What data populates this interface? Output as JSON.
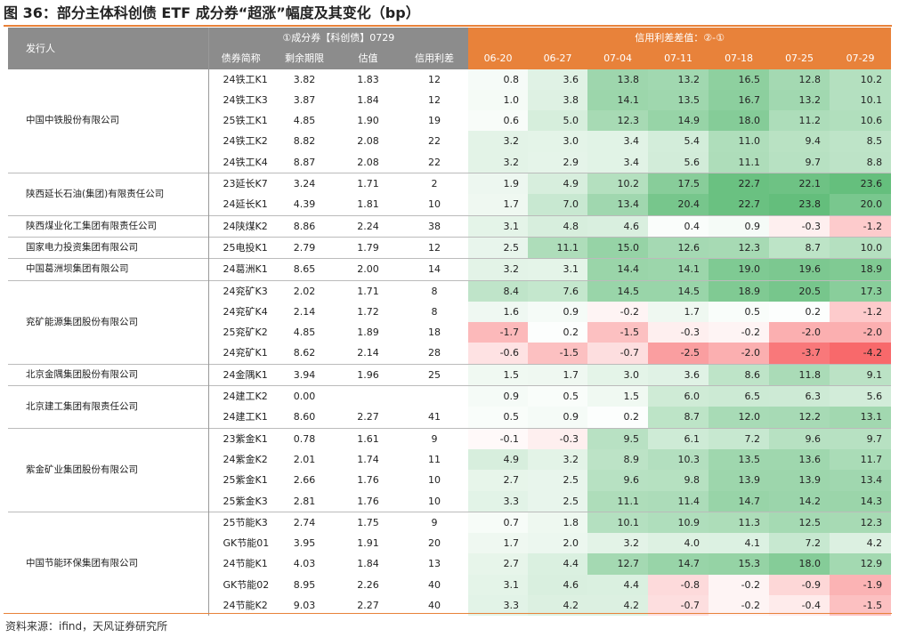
{
  "title": "图 36：部分主体科创债 ETF 成分券“超涨”幅度及其变化（bp）",
  "source": "资料来源：ifind，天风证券研究所",
  "header": {
    "issuer": "发行人",
    "group1": "①成分券【科创债】0729",
    "group2": "信用利差差值：②-①",
    "cols": [
      "债券简称",
      "剩余期限",
      "估值",
      "信用利差"
    ],
    "dates": [
      "06-20",
      "06-27",
      "07-04",
      "07-11",
      "07-18",
      "07-25",
      "07-29"
    ]
  },
  "groups": [
    {
      "issuer": "中国中铁股份有限公司",
      "rows": [
        {
          "bond": "24铁工K1",
          "term": "3.82",
          "val": "1.83",
          "spread": "12",
          "d": [
            "0.8",
            "3.6",
            "13.8",
            "13.2",
            "16.5",
            "12.8",
            "10.2"
          ]
        },
        {
          "bond": "24铁工K3",
          "term": "3.87",
          "val": "1.84",
          "spread": "12",
          "d": [
            "1.0",
            "3.8",
            "14.1",
            "13.5",
            "16.7",
            "13.2",
            "10.1"
          ]
        },
        {
          "bond": "25铁工K1",
          "term": "4.85",
          "val": "1.90",
          "spread": "19",
          "d": [
            "0.6",
            "5.0",
            "12.3",
            "14.9",
            "18.0",
            "11.2",
            "10.6"
          ]
        },
        {
          "bond": "24铁工K2",
          "term": "8.82",
          "val": "2.08",
          "spread": "22",
          "d": [
            "3.2",
            "3.0",
            "3.4",
            "5.4",
            "11.0",
            "9.4",
            "8.5"
          ]
        },
        {
          "bond": "24铁工K4",
          "term": "8.87",
          "val": "2.08",
          "spread": "22",
          "d": [
            "3.2",
            "2.9",
            "3.4",
            "5.6",
            "11.1",
            "9.7",
            "8.8"
          ]
        }
      ]
    },
    {
      "issuer": "陕西延长石油(集团)有限责任公司",
      "rows": [
        {
          "bond": "23延长K7",
          "term": "3.24",
          "val": "1.71",
          "spread": "2",
          "d": [
            "1.9",
            "4.9",
            "10.2",
            "17.5",
            "22.7",
            "22.1",
            "23.6"
          ]
        },
        {
          "bond": "24延长K1",
          "term": "4.39",
          "val": "1.81",
          "spread": "10",
          "d": [
            "1.7",
            "7.0",
            "13.4",
            "20.4",
            "22.7",
            "23.8",
            "20.0"
          ]
        }
      ]
    },
    {
      "issuer": "陕西煤业化工集团有限责任公司",
      "rows": [
        {
          "bond": "24陕煤K2",
          "term": "8.86",
          "val": "2.24",
          "spread": "38",
          "d": [
            "3.1",
            "4.8",
            "4.6",
            "0.4",
            "0.9",
            "-0.3",
            "-1.2"
          ]
        }
      ]
    },
    {
      "issuer": "国家电力投资集团有限公司",
      "rows": [
        {
          "bond": "25电投K1",
          "term": "2.79",
          "val": "1.79",
          "spread": "12",
          "d": [
            "2.5",
            "11.1",
            "15.0",
            "12.6",
            "12.3",
            "8.7",
            "10.0"
          ]
        }
      ]
    },
    {
      "issuer": "中国葛洲坝集团有限公司",
      "rows": [
        {
          "bond": "24葛洲K1",
          "term": "8.65",
          "val": "2.00",
          "spread": "14",
          "d": [
            "3.2",
            "3.1",
            "14.4",
            "14.1",
            "19.0",
            "19.6",
            "18.9"
          ]
        }
      ]
    },
    {
      "issuer": "兖矿能源集团股份有限公司",
      "rows": [
        {
          "bond": "24兖矿K3",
          "term": "2.02",
          "val": "1.71",
          "spread": "8",
          "d": [
            "8.4",
            "7.6",
            "14.5",
            "14.5",
            "18.9",
            "20.5",
            "17.3"
          ]
        },
        {
          "bond": "24兖矿K4",
          "term": "2.14",
          "val": "1.72",
          "spread": "8",
          "d": [
            "1.6",
            "0.9",
            "-0.2",
            "1.7",
            "0.5",
            "0.2",
            "-1.2"
          ]
        },
        {
          "bond": "25兖矿K2",
          "term": "4.85",
          "val": "1.89",
          "spread": "18",
          "d": [
            "-1.7",
            "0.2",
            "-1.5",
            "-0.3",
            "-0.2",
            "-2.0",
            "-2.0"
          ]
        },
        {
          "bond": "24兖矿K1",
          "term": "8.62",
          "val": "2.14",
          "spread": "28",
          "d": [
            "-0.6",
            "-1.5",
            "-0.7",
            "-2.5",
            "-2.0",
            "-3.7",
            "-4.2"
          ]
        }
      ]
    },
    {
      "issuer": "北京金隅集团股份有限公司",
      "rows": [
        {
          "bond": "24金隅K1",
          "term": "3.94",
          "val": "1.96",
          "spread": "25",
          "d": [
            "1.5",
            "1.7",
            "3.0",
            "3.6",
            "8.6",
            "11.8",
            "9.1"
          ]
        }
      ]
    },
    {
      "issuer": "北京建工集团有限责任公司",
      "rows": [
        {
          "bond": "24建工K2",
          "term": "0.00",
          "val": "",
          "spread": "",
          "d": [
            "0.9",
            "0.5",
            "1.5",
            "6.0",
            "6.5",
            "6.3",
            "5.6"
          ]
        },
        {
          "bond": "24建工K1",
          "term": "8.60",
          "val": "2.27",
          "spread": "41",
          "d": [
            "0.5",
            "0.9",
            "0.2",
            "8.7",
            "12.0",
            "12.2",
            "13.1"
          ]
        }
      ]
    },
    {
      "issuer": "紫金矿业集团股份有限公司",
      "rows": [
        {
          "bond": "23紫金K1",
          "term": "0.78",
          "val": "1.61",
          "spread": "9",
          "d": [
            "-0.1",
            "-0.3",
            "9.5",
            "6.1",
            "7.2",
            "9.6",
            "9.7"
          ]
        },
        {
          "bond": "24紫金K2",
          "term": "2.01",
          "val": "1.74",
          "spread": "11",
          "d": [
            "4.9",
            "3.2",
            "8.9",
            "10.3",
            "13.5",
            "13.6",
            "11.7"
          ]
        },
        {
          "bond": "25紫金K1",
          "term": "2.66",
          "val": "1.76",
          "spread": "10",
          "d": [
            "2.7",
            "2.5",
            "9.6",
            "9.8",
            "13.9",
            "13.9",
            "13.4"
          ]
        },
        {
          "bond": "25紫金K3",
          "term": "2.81",
          "val": "1.76",
          "spread": "10",
          "d": [
            "3.3",
            "2.5",
            "11.1",
            "11.4",
            "14.7",
            "14.2",
            "14.3"
          ]
        }
      ]
    },
    {
      "issuer": "中国节能环保集团有限公司",
      "rows": [
        {
          "bond": "25节能K3",
          "term": "2.74",
          "val": "1.75",
          "spread": "9",
          "d": [
            "0.7",
            "1.8",
            "10.1",
            "10.9",
            "11.3",
            "12.5",
            "12.3"
          ]
        },
        {
          "bond": "GK节能01",
          "term": "3.95",
          "val": "1.91",
          "spread": "20",
          "d": [
            "1.7",
            "2.0",
            "3.2",
            "4.0",
            "4.1",
            "7.2",
            "4.2"
          ]
        },
        {
          "bond": "24节能K1",
          "term": "4.03",
          "val": "1.84",
          "spread": "13",
          "d": [
            "2.7",
            "4.4",
            "12.7",
            "14.7",
            "15.3",
            "18.0",
            "12.9"
          ]
        },
        {
          "bond": "GK节能02",
          "term": "8.95",
          "val": "2.26",
          "spread": "40",
          "d": [
            "3.1",
            "4.6",
            "4.4",
            "-0.8",
            "-0.2",
            "-0.9",
            "-1.9"
          ]
        },
        {
          "bond": "24节能K2",
          "term": "9.03",
          "val": "2.27",
          "spread": "40",
          "d": [
            "3.3",
            "4.2",
            "4.2",
            "-0.7",
            "-0.2",
            "-0.4",
            "-1.5"
          ]
        }
      ]
    }
  ]
}
